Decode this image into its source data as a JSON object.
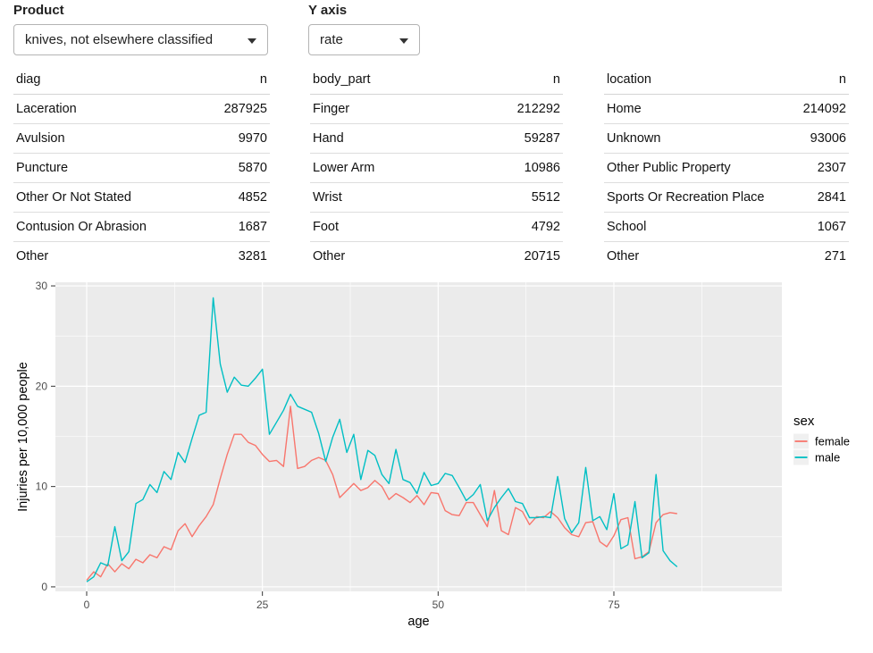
{
  "controls": {
    "product": {
      "label": "Product",
      "value": "knives, not elsewhere classified"
    },
    "y_axis": {
      "label": "Y axis",
      "value": "rate"
    }
  },
  "tables": [
    {
      "name": "diag-table",
      "columns": [
        "diag",
        "n"
      ],
      "rows": [
        [
          "Laceration",
          "287925"
        ],
        [
          "Avulsion",
          "9970"
        ],
        [
          "Puncture",
          "5870"
        ],
        [
          "Other Or Not Stated",
          "4852"
        ],
        [
          "Contusion Or Abrasion",
          "1687"
        ],
        [
          "Other",
          "3281"
        ]
      ]
    },
    {
      "name": "body-part-table",
      "columns": [
        "body_part",
        "n"
      ],
      "rows": [
        [
          "Finger",
          "212292"
        ],
        [
          "Hand",
          "59287"
        ],
        [
          "Lower Arm",
          "10986"
        ],
        [
          "Wrist",
          "5512"
        ],
        [
          "Foot",
          "4792"
        ],
        [
          "Other",
          "20715"
        ]
      ]
    },
    {
      "name": "location-table",
      "columns": [
        "location",
        "n"
      ],
      "rows": [
        [
          "Home",
          "214092"
        ],
        [
          "Unknown",
          "93006"
        ],
        [
          "Other Public Property",
          "2307"
        ],
        [
          "Sports Or Recreation Place",
          "2841"
        ],
        [
          "School",
          "1067"
        ],
        [
          "Other",
          "271"
        ]
      ]
    }
  ],
  "chart_data": {
    "type": "line",
    "xlabel": "age",
    "ylabel": "Injuries per 10,000 people",
    "x_ticks": [
      0,
      25,
      50,
      75
    ],
    "y_ticks": [
      0,
      10,
      20,
      30
    ],
    "x_minor": [
      12.5,
      37.5,
      62.5,
      87.5
    ],
    "y_minor": [
      5,
      15,
      25
    ],
    "xlim": [
      -4.45,
      98.9
    ],
    "ylim": [
      -0.45,
      30.36
    ],
    "panel_bg": "#EBEBEB",
    "grid_color": "#FFFFFF",
    "legend": {
      "title": "sex",
      "position": "right",
      "key_bg": "#F0F0F0",
      "entries": [
        {
          "label": "female",
          "color": "#F8766D"
        },
        {
          "label": "male",
          "color": "#00BFC4"
        }
      ]
    },
    "x": [
      0,
      1,
      2,
      3,
      4,
      5,
      6,
      7,
      8,
      9,
      10,
      11,
      12,
      13,
      14,
      15,
      16,
      17,
      18,
      19,
      20,
      21,
      22,
      23,
      24,
      25,
      26,
      27,
      28,
      29,
      30,
      31,
      32,
      33,
      34,
      35,
      36,
      37,
      38,
      39,
      40,
      41,
      42,
      43,
      44,
      45,
      46,
      47,
      48,
      49,
      50,
      51,
      52,
      53,
      54,
      55,
      56,
      57,
      58,
      59,
      60,
      61,
      62,
      63,
      64,
      65,
      66,
      67,
      68,
      69,
      70,
      71,
      72,
      73,
      74,
      75,
      76,
      77,
      78,
      79,
      80,
      81,
      82,
      83,
      84
    ],
    "series": [
      {
        "name": "female",
        "color": "#F8766D",
        "values": [
          0.65,
          1.5,
          1.0,
          2.3,
          1.5,
          2.3,
          1.8,
          2.75,
          2.4,
          3.2,
          2.9,
          4.0,
          3.7,
          5.6,
          6.3,
          5.0,
          6.1,
          7.0,
          8.2,
          10.8,
          13.2,
          15.2,
          15.2,
          14.4,
          14.1,
          13.2,
          12.5,
          12.6,
          12.0,
          18.0,
          11.8,
          12.0,
          12.6,
          12.9,
          12.6,
          11.2,
          8.9,
          9.6,
          10.3,
          9.6,
          9.9,
          10.6,
          10.0,
          8.7,
          9.3,
          8.9,
          8.4,
          9.1,
          8.2,
          9.4,
          9.3,
          7.6,
          7.2,
          7.1,
          8.4,
          8.4,
          7.2,
          6.0,
          9.6,
          5.6,
          5.2,
          7.9,
          7.5,
          6.2,
          7.0,
          6.9,
          7.5,
          6.9,
          5.9,
          5.2,
          5.0,
          6.4,
          6.5,
          4.5,
          4.0,
          5.1,
          6.7,
          6.9,
          2.8,
          3.0,
          3.5,
          6.4,
          7.2,
          7.4,
          7.3
        ]
      },
      {
        "name": "male",
        "color": "#00BFC4",
        "values": [
          0.5,
          1.0,
          2.4,
          2.1,
          6.0,
          2.6,
          3.5,
          8.3,
          8.7,
          10.2,
          9.4,
          11.5,
          10.7,
          13.4,
          12.4,
          14.8,
          17.1,
          17.4,
          28.8,
          22.2,
          19.4,
          20.9,
          20.1,
          20.0,
          20.8,
          21.7,
          15.2,
          16.4,
          17.6,
          19.2,
          18.0,
          17.7,
          17.4,
          15.3,
          12.5,
          14.9,
          16.7,
          13.4,
          15.2,
          10.7,
          13.6,
          13.1,
          11.2,
          10.3,
          13.7,
          10.7,
          10.4,
          9.3,
          11.4,
          10.1,
          10.3,
          11.3,
          11.1,
          9.9,
          8.6,
          9.2,
          10.2,
          6.6,
          7.9,
          8.9,
          9.8,
          8.5,
          8.3,
          6.9,
          6.9,
          7.0,
          6.9,
          11.0,
          6.8,
          5.4,
          6.4,
          11.9,
          6.6,
          7.0,
          5.7,
          9.3,
          3.8,
          4.2,
          8.5,
          2.9,
          3.4,
          11.2,
          3.6,
          2.6,
          2.0
        ]
      }
    ]
  }
}
